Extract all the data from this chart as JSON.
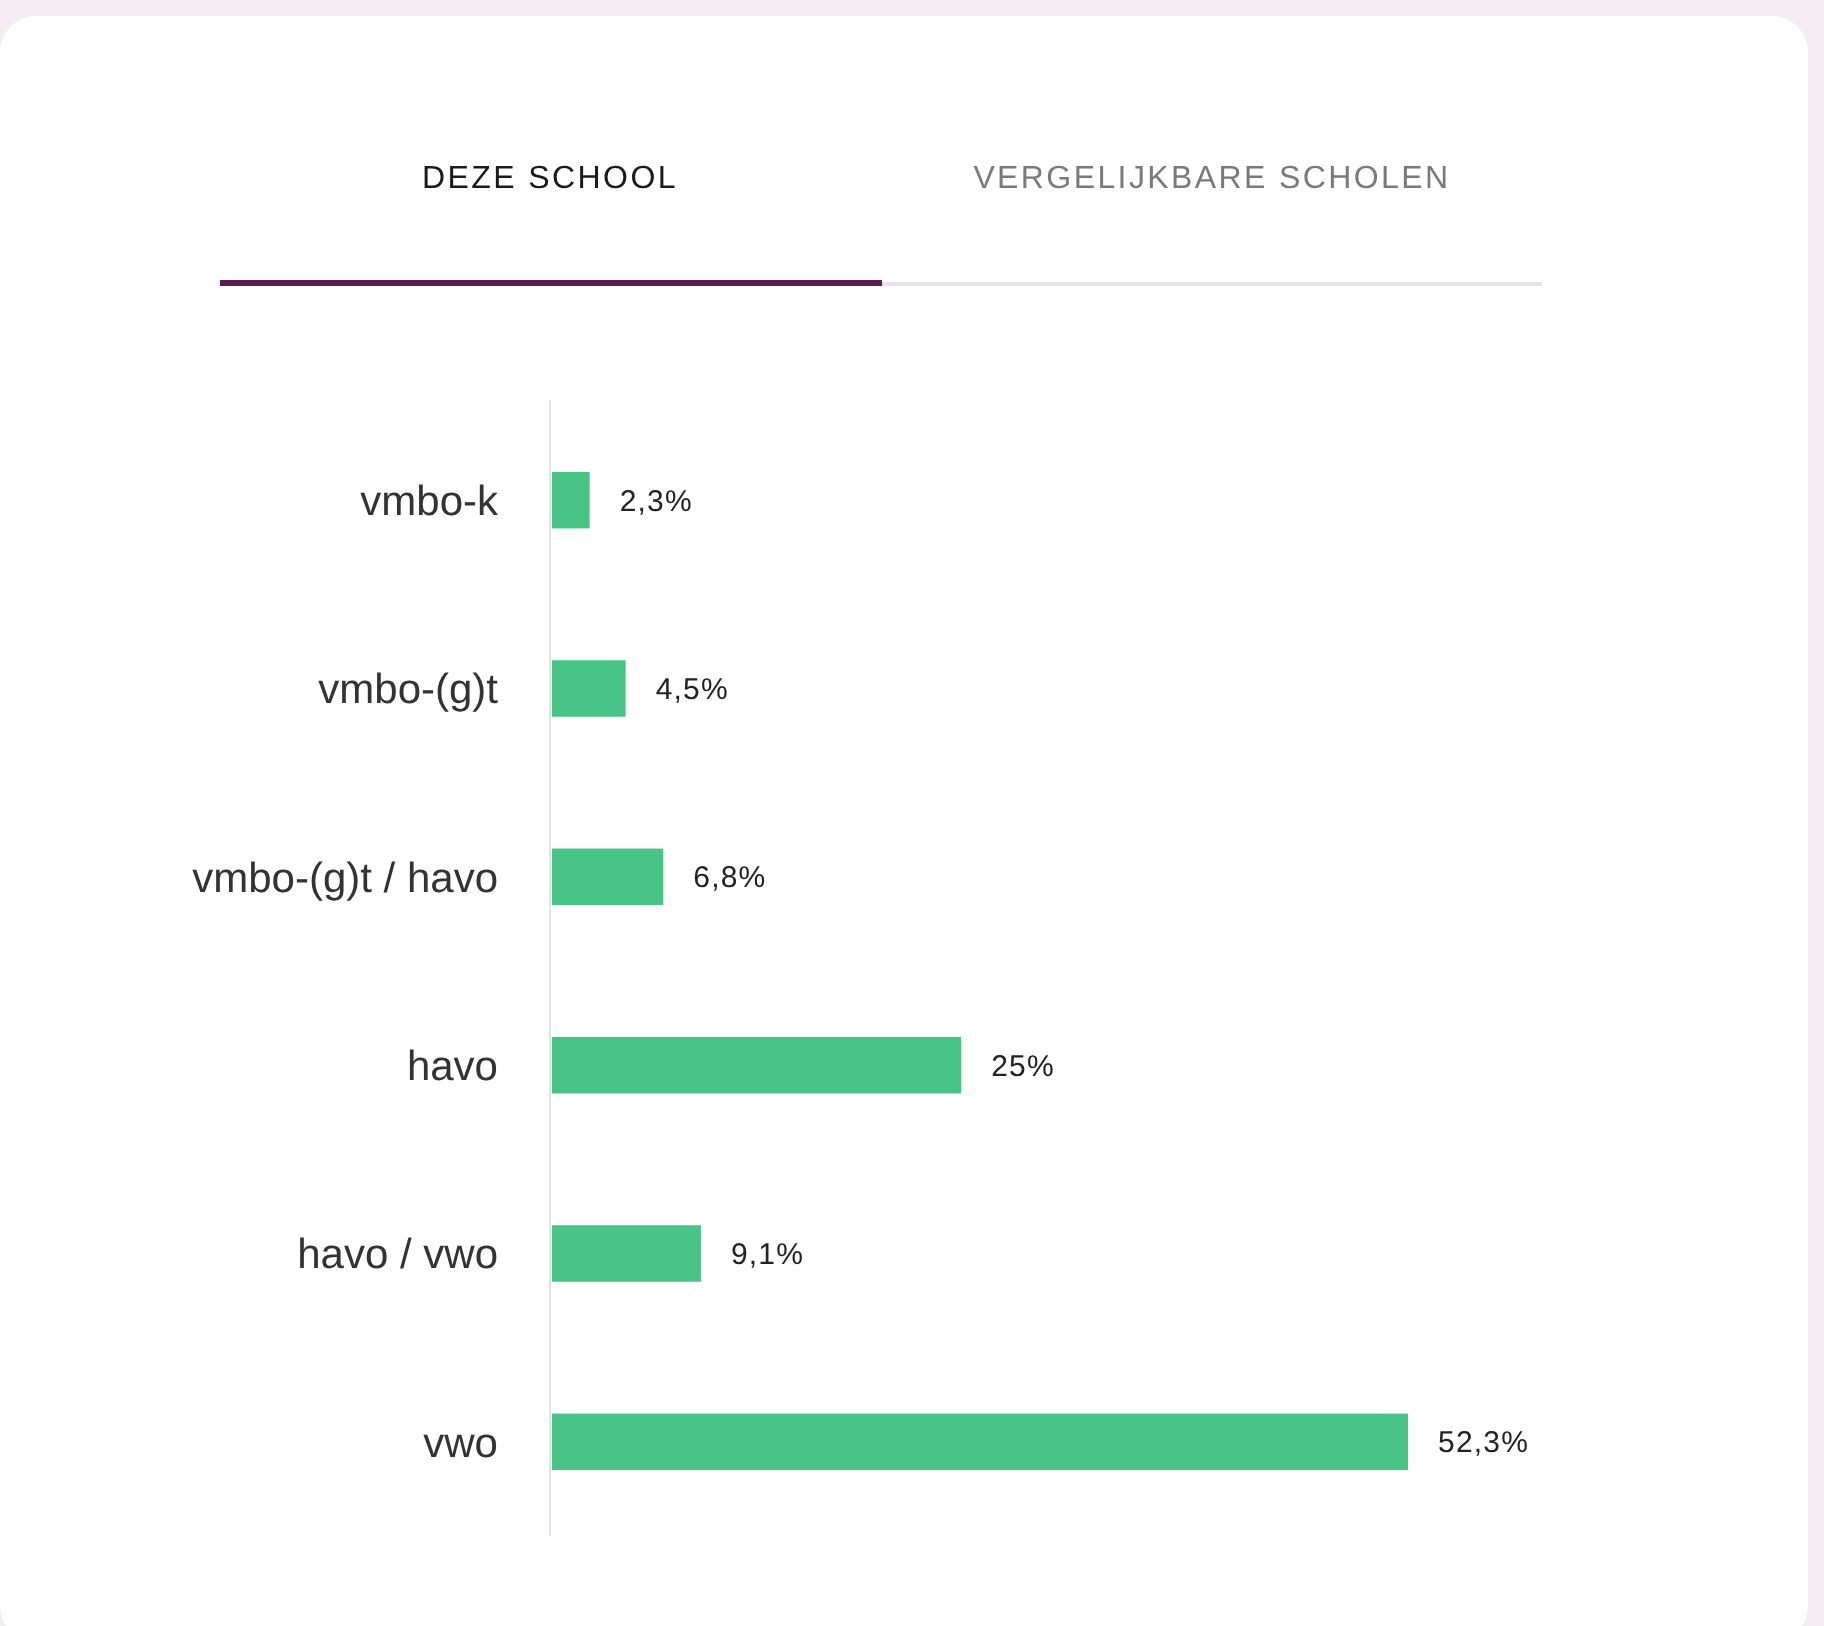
{
  "chart_data": {
    "type": "bar",
    "orientation": "horizontal",
    "annotations": [
      "DEZE SCHOOL",
      "VERGELIJKBARE SCHOLEN"
    ],
    "categories": [
      "vmbo-k",
      "vmbo-(g)t",
      "vmbo-(g)t / havo",
      "havo",
      "havo / vwo",
      "vwo"
    ],
    "values": [
      2.3,
      4.5,
      6.8,
      25,
      9.1,
      52.3
    ],
    "value_labels": [
      "2,3%",
      "4,5%",
      "6,8%",
      "25%",
      "9,1%",
      "52,3%"
    ],
    "color": "#47c486"
  }
}
